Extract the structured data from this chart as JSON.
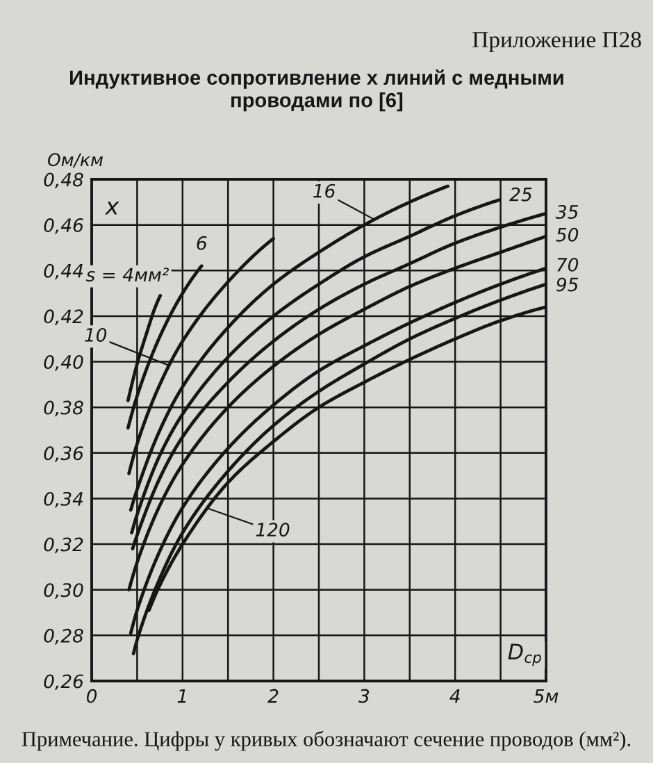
{
  "chart_data": {
    "type": "line",
    "title": "Индуктивное сопротивление x линий с медными\nпроводами по [6]",
    "xlabel": "D$_{ср}$",
    "ylabel": "x",
    "annotations": [
      "Приложение П28",
      "Ом/км",
      "Примечание. Цифры у кривых обозначают сечение проводов (мм²)."
    ],
    "xlim": [
      0,
      5
    ],
    "ylim": [
      0.26,
      0.48
    ],
    "xticks": [
      0,
      {
        "value": 0.5,
        "label": null
      },
      1,
      {
        "value": 1.5,
        "label": null
      },
      2,
      {
        "value": 2.5,
        "label": null
      },
      3,
      {
        "value": 3.5,
        "label": null
      },
      4,
      {
        "value": 4.5,
        "label": null
      },
      {
        "value": 5,
        "label": "5м"
      }
    ],
    "yticks": [
      {
        "value": 0.26,
        "label": "0,26"
      },
      {
        "value": 0.28,
        "label": "0,28"
      },
      {
        "value": 0.3,
        "label": "0,30"
      },
      {
        "value": 0.32,
        "label": "0,32"
      },
      {
        "value": 0.34,
        "label": "0,34"
      },
      {
        "value": 0.36,
        "label": "0,36"
      },
      {
        "value": 0.38,
        "label": "0,38"
      },
      {
        "value": 0.4,
        "label": "0,40"
      },
      {
        "value": 0.42,
        "label": "0,42"
      },
      {
        "value": 0.44,
        "label": "0,44"
      },
      {
        "value": 0.46,
        "label": "0,46"
      },
      {
        "value": 0.48,
        "label": "0,48"
      }
    ],
    "grid": true,
    "line_style": "solid",
    "series": [
      {
        "name": "s = 4мм²",
        "color": "#161616",
        "x": [
          0.4,
          0.5,
          0.6,
          0.7,
          0.755
        ],
        "values": [
          0.383,
          0.399,
          0.412,
          0.424,
          0.429
        ]
      },
      {
        "name": "6",
        "color": "#161616",
        "x": [
          0.4,
          0.5,
          0.75,
          1.0,
          1.21
        ],
        "values": [
          0.371,
          0.385,
          0.411,
          0.43,
          0.442
        ]
      },
      {
        "name": "10",
        "color": "#161616",
        "x": [
          0.41,
          0.5,
          0.75,
          1.0,
          1.5,
          2.0
        ],
        "values": [
          0.351,
          0.364,
          0.39,
          0.409,
          0.435,
          0.454
        ]
      },
      {
        "name": "16",
        "color": "#161616",
        "x": [
          0.43,
          0.5,
          0.75,
          1.0,
          1.5,
          2.0,
          2.5,
          3.0,
          3.5,
          3.92
        ],
        "values": [
          0.335,
          0.344,
          0.37,
          0.389,
          0.415,
          0.434,
          0.448,
          0.46,
          0.47,
          0.477
        ]
      },
      {
        "name": "25",
        "color": "#161616",
        "x": [
          0.44,
          0.5,
          0.75,
          1.0,
          1.5,
          2.0,
          2.5,
          3.0,
          3.5,
          4.0,
          4.49
        ],
        "values": [
          0.325,
          0.333,
          0.359,
          0.377,
          0.402,
          0.42,
          0.434,
          0.446,
          0.455,
          0.464,
          0.471
        ]
      },
      {
        "name": "35",
        "color": "#161616",
        "x": [
          0.45,
          0.5,
          0.75,
          1.0,
          1.5,
          2.0,
          2.5,
          3.0,
          3.5,
          4.0,
          4.5,
          5.0
        ],
        "values": [
          0.318,
          0.324,
          0.349,
          0.367,
          0.391,
          0.409,
          0.423,
          0.434,
          0.443,
          0.452,
          0.459,
          0.465
        ]
      },
      {
        "name": "50",
        "color": "#161616",
        "x": [
          0.41,
          0.5,
          0.75,
          1.0,
          1.5,
          2.0,
          2.5,
          3.0,
          3.5,
          4.0,
          4.5,
          5.0
        ],
        "values": [
          0.3,
          0.312,
          0.337,
          0.355,
          0.38,
          0.398,
          0.412,
          0.423,
          0.433,
          0.441,
          0.448,
          0.455
        ]
      },
      {
        "name": "70",
        "color": "#161616",
        "x": [
          0.43,
          0.5,
          0.75,
          1.0,
          1.5,
          2.0,
          2.5,
          3.0,
          3.5,
          4.0,
          4.5,
          5.0
        ],
        "values": [
          0.281,
          0.291,
          0.317,
          0.336,
          0.362,
          0.381,
          0.396,
          0.407,
          0.417,
          0.426,
          0.434,
          0.441
        ]
      },
      {
        "name": "95",
        "color": "#161616",
        "x": [
          0.46,
          0.5,
          0.75,
          1.0,
          1.5,
          2.0,
          2.5,
          3.0,
          3.5,
          4.0,
          4.5,
          5.0
        ],
        "values": [
          0.272,
          0.278,
          0.305,
          0.325,
          0.352,
          0.372,
          0.387,
          0.399,
          0.41,
          0.419,
          0.427,
          0.434
        ]
      },
      {
        "name": "120",
        "color": "#161616",
        "x": [
          0.63,
          0.75,
          1.0,
          1.5,
          2.0,
          2.5,
          3.0,
          3.5,
          4.0,
          4.5,
          5.0
        ],
        "values": [
          0.291,
          0.302,
          0.32,
          0.347,
          0.365,
          0.38,
          0.391,
          0.401,
          0.41,
          0.418,
          0.424
        ]
      }
    ]
  }
}
